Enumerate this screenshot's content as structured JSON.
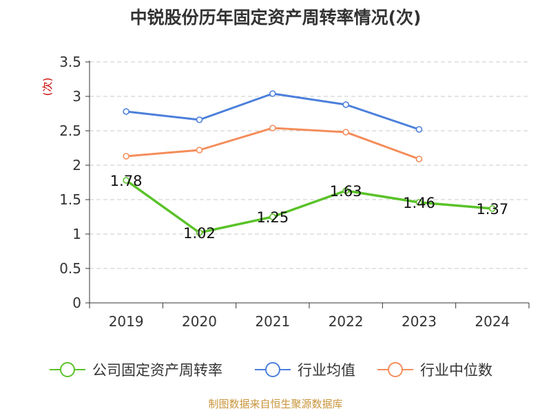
{
  "title": "中锐股份历年固定资产周转率情况(次)",
  "source": "制图数据来自恒生聚源数据库",
  "chart_data": {
    "type": "line",
    "title": "中锐股份历年固定资产周转率情况(次)",
    "ylabel": "(次)",
    "ylim": [
      0,
      3.5
    ],
    "yticks": [
      "0",
      "0.5",
      "1",
      "1.5",
      "2",
      "2.5",
      "3",
      "3.5"
    ],
    "categories": [
      "2019",
      "2020",
      "2021",
      "2022",
      "2023",
      "2024"
    ],
    "grid": true,
    "legend_position": "bottom",
    "series": [
      {
        "name": "公司固定资产周转率",
        "color": "#5ac229",
        "values": [
          1.78,
          1.02,
          1.25,
          1.63,
          1.46,
          1.37
        ],
        "labels": [
          "1.78",
          "1.02",
          "1.25",
          "1.63",
          "1.46",
          "1.37"
        ]
      },
      {
        "name": "行业均值",
        "color": "#4b7fdb",
        "values": [
          2.78,
          2.66,
          3.04,
          2.88,
          2.52,
          null
        ]
      },
      {
        "name": "行业中位数",
        "color": "#f48d5a",
        "values": [
          2.13,
          2.22,
          2.54,
          2.48,
          2.09,
          null
        ]
      }
    ]
  }
}
